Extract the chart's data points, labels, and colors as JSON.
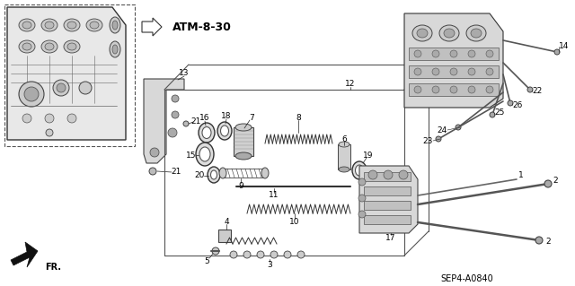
{
  "bg_color": "#ffffff",
  "fig_width": 6.4,
  "fig_height": 3.19,
  "dpi": 100,
  "atm_label": "ATM-8-30",
  "bottom_right_code": "SEP4-A0840",
  "fr_label": "FR.",
  "lc": "#222222",
  "tc": "#000000",
  "gray1": "#888888",
  "gray2": "#aaaaaa",
  "gray3": "#cccccc",
  "gray4": "#dddddd"
}
